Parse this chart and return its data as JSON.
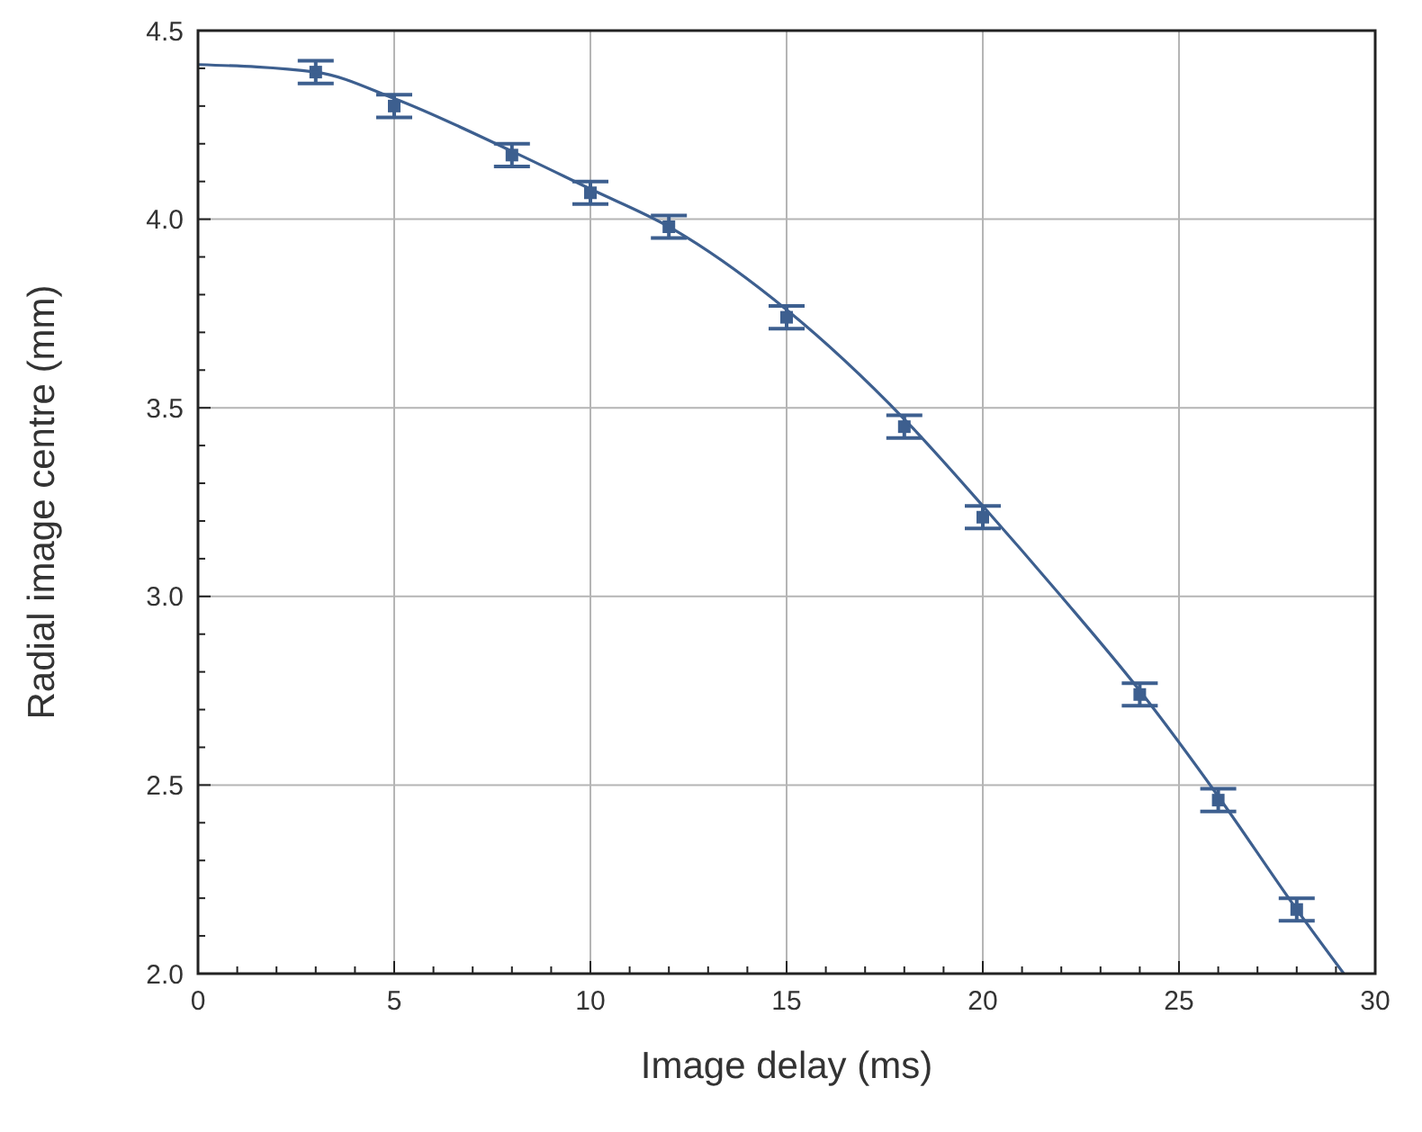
{
  "chart_data": {
    "type": "scatter",
    "xlabel": "Image delay (ms)",
    "ylabel": "Radial image centre (mm)",
    "xlim": [
      0,
      30
    ],
    "ylim": [
      2.0,
      4.5
    ],
    "xticks": [
      0,
      {
        "value": 1,
        "label": null
      },
      {
        "value": 2,
        "label": null
      },
      {
        "value": 3,
        "label": null
      },
      {
        "value": 4,
        "label": null
      },
      5,
      {
        "value": 6,
        "label": null
      },
      {
        "value": 7,
        "label": null
      },
      {
        "value": 8,
        "label": null
      },
      {
        "value": 9,
        "label": null
      },
      10,
      {
        "value": 11,
        "label": null
      },
      {
        "value": 12,
        "label": null
      },
      {
        "value": 13,
        "label": null
      },
      {
        "value": 14,
        "label": null
      },
      15,
      {
        "value": 16,
        "label": null
      },
      {
        "value": 17,
        "label": null
      },
      {
        "value": 18,
        "label": null
      },
      {
        "value": 19,
        "label": null
      },
      20,
      {
        "value": 21,
        "label": null
      },
      {
        "value": 22,
        "label": null
      },
      {
        "value": 23,
        "label": null
      },
      {
        "value": 24,
        "label": null
      },
      25,
      {
        "value": 26,
        "label": null
      },
      {
        "value": 27,
        "label": null
      },
      {
        "value": 28,
        "label": null
      },
      {
        "value": 29,
        "label": null
      },
      30
    ],
    "yticks": [
      {
        "value": 2.0,
        "label": "2.0"
      },
      {
        "value": 2.1,
        "label": null
      },
      {
        "value": 2.2,
        "label": null
      },
      {
        "value": 2.3,
        "label": null
      },
      {
        "value": 2.4,
        "label": null
      },
      2.5,
      {
        "value": 2.6,
        "label": null
      },
      {
        "value": 2.7,
        "label": null
      },
      {
        "value": 2.8,
        "label": null
      },
      {
        "value": 2.9,
        "label": null
      },
      {
        "value": 3.0,
        "label": "3.0"
      },
      {
        "value": 3.1,
        "label": null
      },
      {
        "value": 3.2,
        "label": null
      },
      {
        "value": 3.3,
        "label": null
      },
      {
        "value": 3.4,
        "label": null
      },
      3.5,
      {
        "value": 3.6,
        "label": null
      },
      {
        "value": 3.7,
        "label": null
      },
      {
        "value": 3.8,
        "label": null
      },
      {
        "value": 3.9,
        "label": null
      },
      {
        "value": 4.0,
        "label": "4.0"
      },
      {
        "value": 4.1,
        "label": null
      },
      {
        "value": 4.2,
        "label": null
      },
      {
        "value": 4.3,
        "label": null
      },
      {
        "value": 4.4,
        "label": null
      },
      4.5
    ],
    "grid": true,
    "series": [
      {
        "color": "#3d5f8f",
        "marker": "square",
        "x": [
          3,
          5,
          8,
          10,
          12,
          15,
          18,
          20,
          24,
          26,
          28
        ],
        "values": [
          4.39,
          4.3,
          4.17,
          4.07,
          3.98,
          3.74,
          3.45,
          3.21,
          2.74,
          2.46,
          2.17
        ],
        "errors": [
          0.03,
          0.03,
          0.03,
          0.03,
          0.03,
          0.03,
          0.03,
          0.03,
          0.03,
          0.03,
          0.03
        ]
      },
      {
        "type": "line",
        "color": "#3d5f8f",
        "marker": "none",
        "x": [
          0,
          3,
          5,
          8,
          10,
          12,
          15,
          18,
          20,
          22,
          24,
          26,
          28,
          29.2
        ],
        "values": [
          4.41,
          4.39,
          4.32,
          4.18,
          4.08,
          3.98,
          3.76,
          3.47,
          3.24,
          3.0,
          2.75,
          2.47,
          2.17,
          2.0
        ]
      }
    ]
  }
}
